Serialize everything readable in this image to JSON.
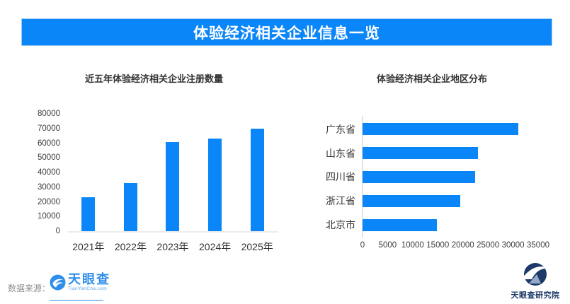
{
  "header": {
    "title": "体验经济相关企业信息一览"
  },
  "chart_data": [
    {
      "id": "registrations",
      "type": "bar",
      "title": "近五年体验经济相关企业注册数量",
      "categories": [
        "2021年",
        "2022年",
        "2023年",
        "2024年",
        "2025年"
      ],
      "values": [
        23000,
        33000,
        60500,
        63000,
        70000
      ],
      "xlabel": "",
      "ylabel": "",
      "ylim": [
        0,
        80000
      ],
      "ytick_step": 10000,
      "grid": false,
      "legend": "none",
      "bar_color": "#0b86f9"
    },
    {
      "id": "regions",
      "type": "bar-horizontal",
      "title": "体验经济相关企业地区分布",
      "categories": [
        "广东省",
        "山东省",
        "四川省",
        "浙江省",
        "北京市"
      ],
      "values": [
        31000,
        23000,
        22500,
        19500,
        14800
      ],
      "xlabel": "",
      "ylabel": "",
      "xlim": [
        0,
        35000
      ],
      "xtick_step": 5000,
      "grid": false,
      "legend": "none",
      "bar_color": "#0b86f9"
    }
  ],
  "footer": {
    "source_label": "数据来源：",
    "source_logo": {
      "name": "天眼查",
      "subtext": "TianYanCha.com"
    },
    "right_logo": {
      "name": "天眼查研究院"
    }
  },
  "colors": {
    "accent_blue": "#0b86f9",
    "tianyancha_blue": "#2f8eea",
    "institute_navy": "#1c3a69",
    "banner_text": "#ffffff"
  }
}
